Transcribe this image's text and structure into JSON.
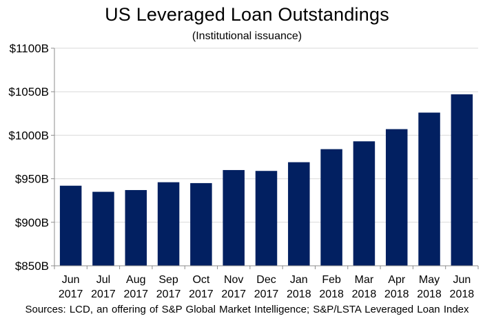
{
  "chart_data": {
    "type": "bar",
    "title": "US Leveraged Loan Outstandings",
    "subtitle": "(Institutional issuance)",
    "categories": [
      [
        "Jun",
        "2017"
      ],
      [
        "Jul",
        "2017"
      ],
      [
        "Aug",
        "2017"
      ],
      [
        "Sep",
        "2017"
      ],
      [
        "Oct",
        "2017"
      ],
      [
        "Nov",
        "2017"
      ],
      [
        "Dec",
        "2017"
      ],
      [
        "Jan",
        "2018"
      ],
      [
        "Feb",
        "2018"
      ],
      [
        "Mar",
        "2018"
      ],
      [
        "Apr",
        "2018"
      ],
      [
        "May",
        "2018"
      ],
      [
        "Jun",
        "2018"
      ]
    ],
    "values": [
      942,
      935,
      937,
      946,
      945,
      960,
      959,
      969,
      984,
      993,
      1007,
      1026,
      1047
    ],
    "unit": "$B",
    "ylim": [
      850,
      1100
    ],
    "yticks": [
      850,
      900,
      950,
      1000,
      1050,
      1100
    ],
    "ytick_labels": [
      "$850B",
      "$900B",
      "$950B",
      "$1000B",
      "$1050B",
      "$1100B"
    ],
    "xlabel": "",
    "ylabel": "",
    "grid": true,
    "legend": "none",
    "bar_color": "#022061",
    "grid_color": "#d9d9d9",
    "source": "Sources: LCD, an offering of S&P Global Market Intelligence;  S&P/LSTA Leveraged Loan Index"
  }
}
